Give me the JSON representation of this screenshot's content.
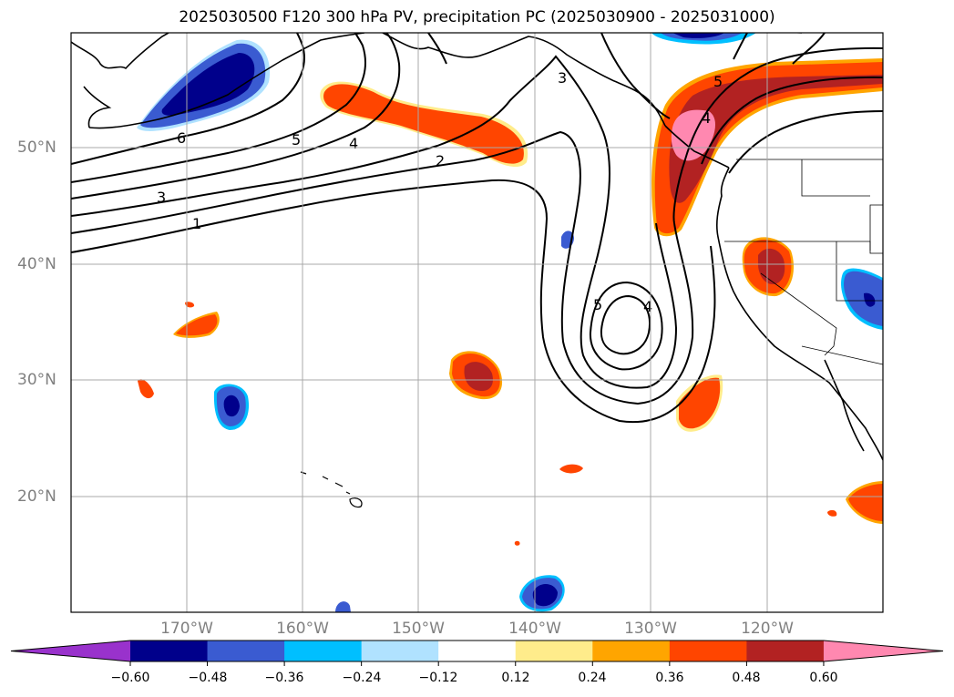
{
  "title": "2025030500 F120 300 hPa PV, precipitation PC (2025030900 - 2025031000)",
  "lat_labels": [
    "50°N",
    "40°N",
    "30°N",
    "20°N"
  ],
  "lon_labels": [
    "170°W",
    "160°W",
    "150°W",
    "140°W",
    "130°W",
    "120°W"
  ],
  "colorbar": {
    "ticks": [
      "−0.60",
      "−0.48",
      "−0.36",
      "−0.24",
      "−0.12",
      "0.12",
      "0.24",
      "0.36",
      "0.48",
      "0.60"
    ],
    "colors": [
      "#9932cc",
      "#00008b",
      "#3a5bd1",
      "#00bfff",
      "#b0e2ff",
      "#ffffff",
      "#ffec8b",
      "#ffa500",
      "#ff4500",
      "#b22222",
      "#ff88b0"
    ]
  },
  "pv_contour_labels": [
    "1",
    "2",
    "3",
    "4",
    "5",
    "6",
    "5",
    "4",
    "4",
    "3",
    "5"
  ],
  "colors": {
    "gridline": "#a9a9a9",
    "tick_label": "#808080",
    "contour": "#000000"
  }
}
